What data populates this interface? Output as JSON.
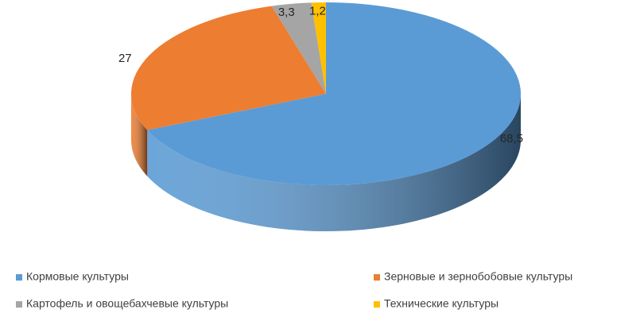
{
  "chart_data": {
    "type": "pie",
    "categories": [
      "Кормовые культуры",
      "Зерновые и зернобобовые культуры",
      "Картофель и овощебахчевые культуры",
      "Технические культуры"
    ],
    "values": [
      68.5,
      27,
      3.3,
      1.2
    ],
    "value_labels": [
      "68,5",
      "27",
      "3,3",
      "1,2"
    ],
    "colors": [
      "#5b9bd5",
      "#ed7d31",
      "#a5a5a5",
      "#ffc000"
    ],
    "legend": "bottom"
  }
}
